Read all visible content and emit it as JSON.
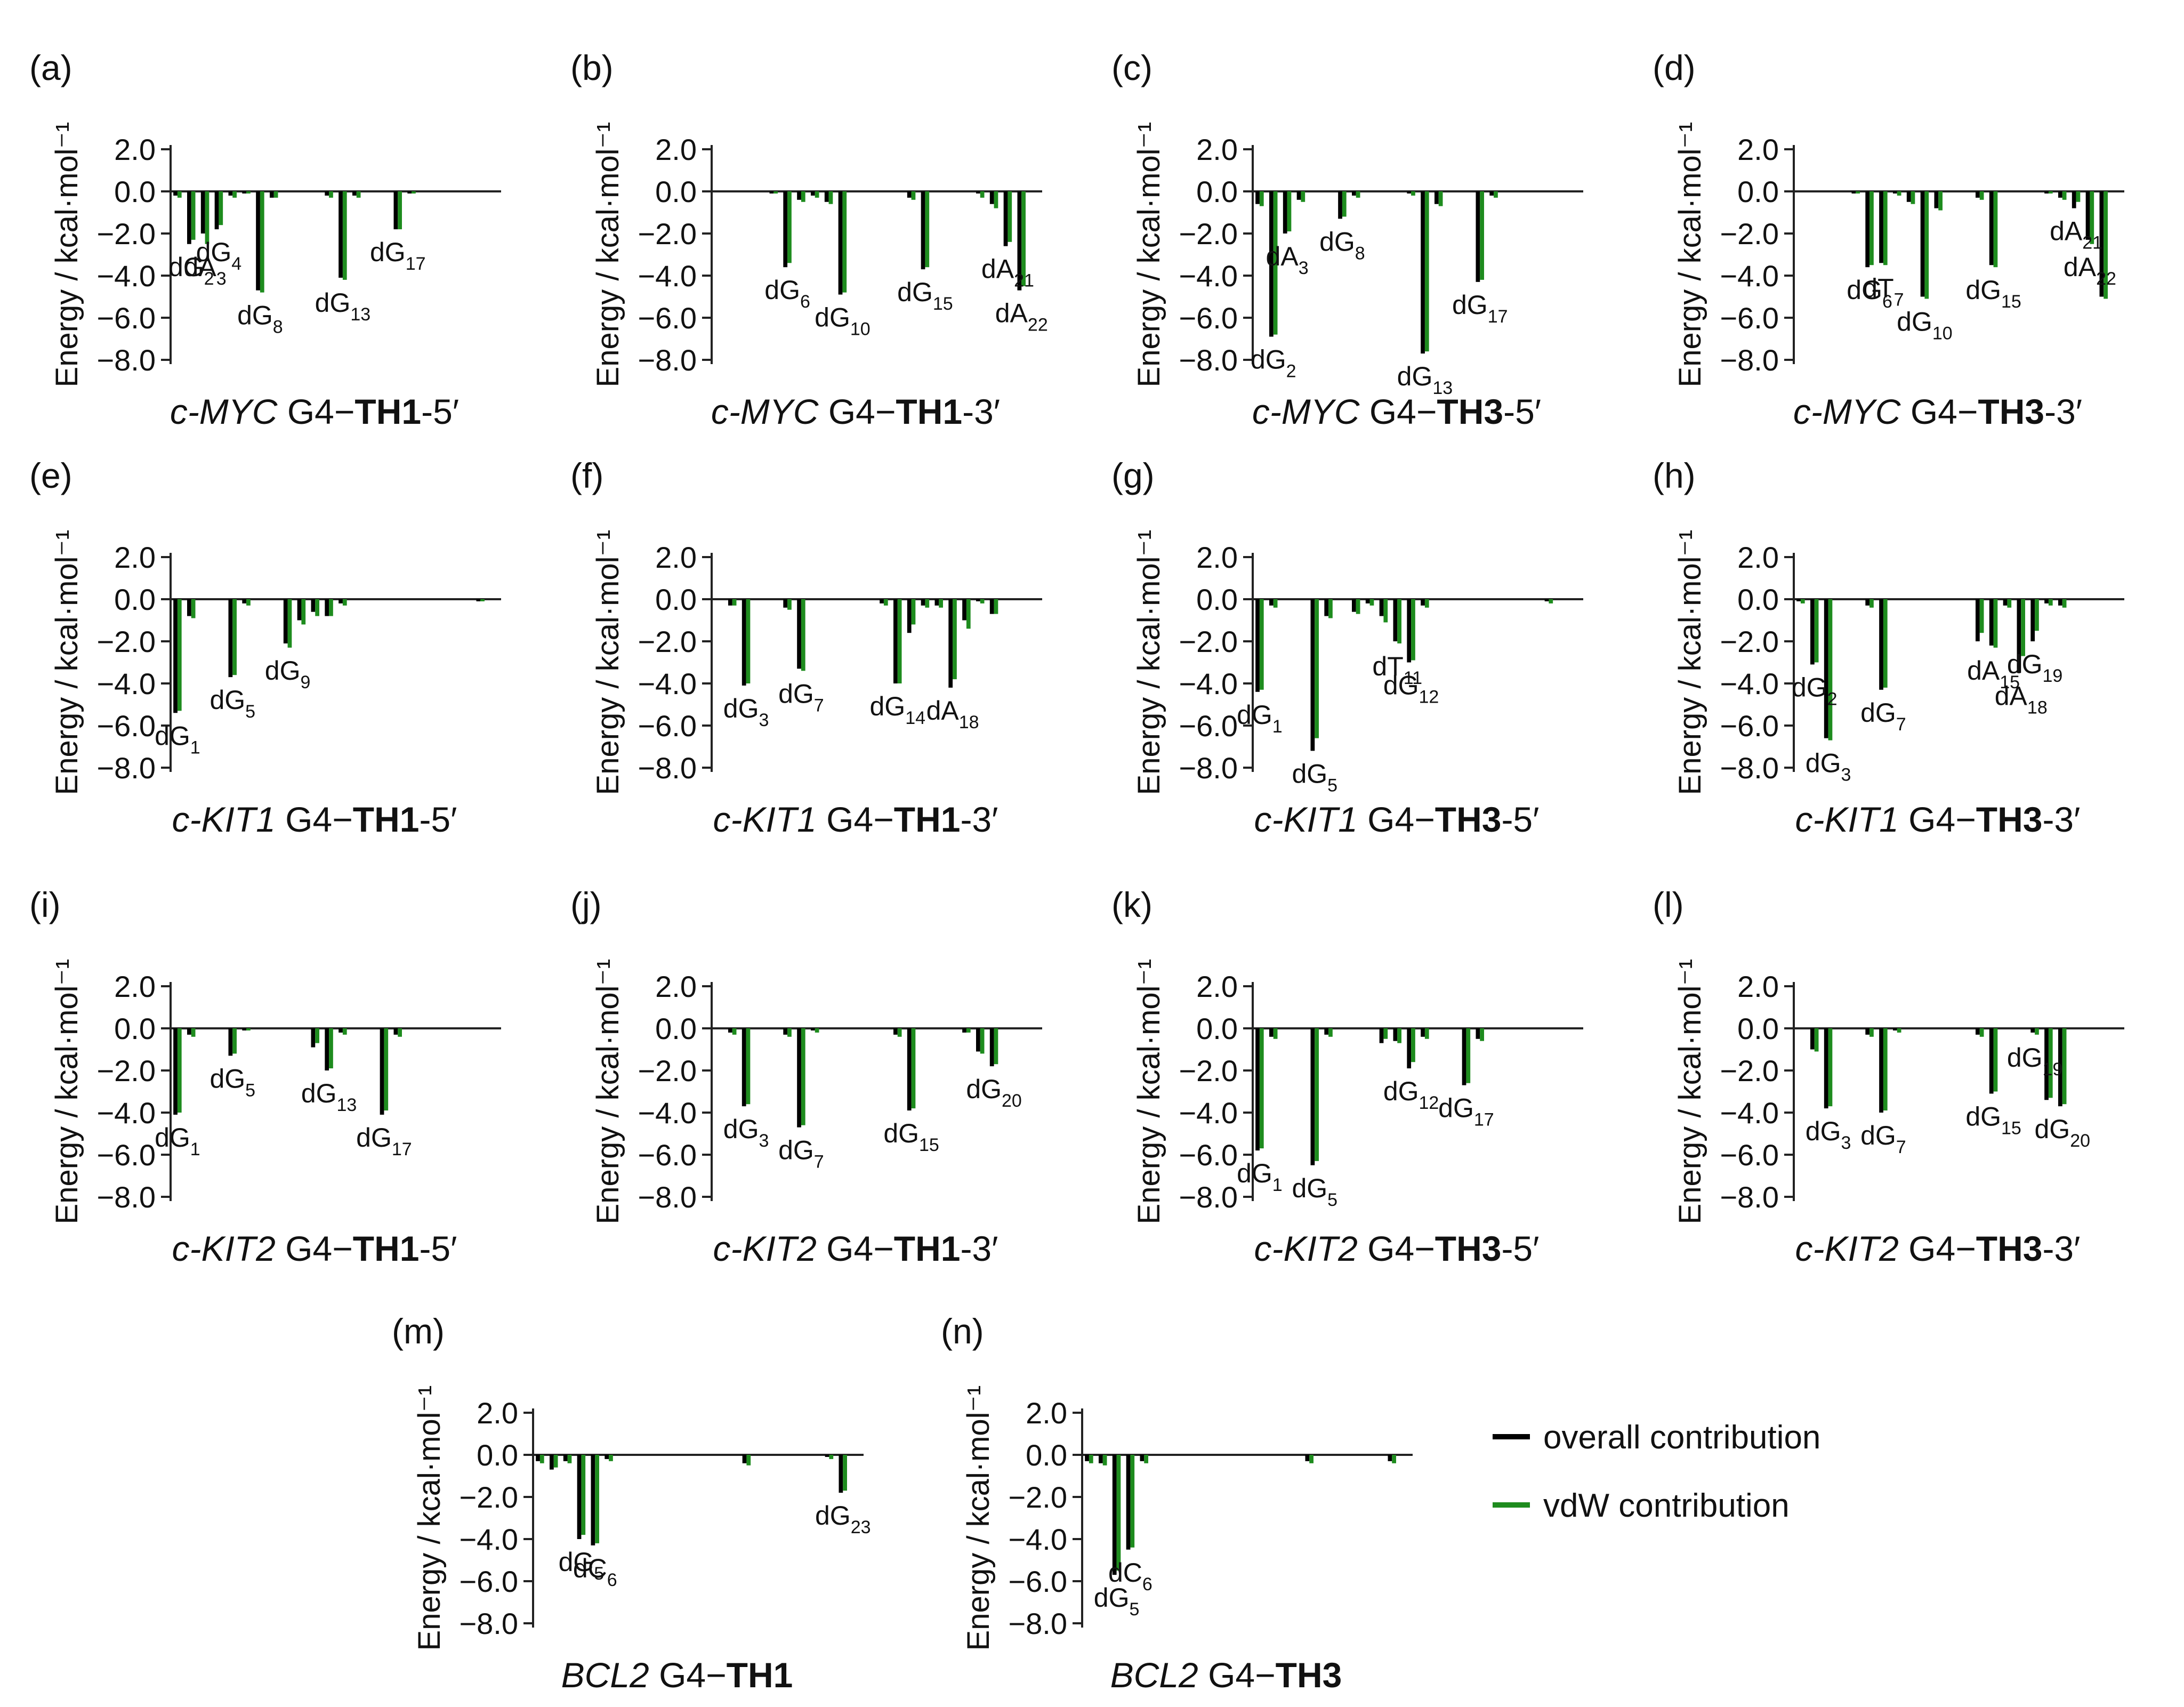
{
  "figure": {
    "axis_label": "Energy / kcal·mol⁻¹",
    "ticks": [
      "2.0",
      "0.0",
      "−2.0",
      "−4.0",
      "−6.0",
      "−8.0"
    ],
    "colors": {
      "overall": "#000000",
      "vdw": "#1e8c1e"
    },
    "legend": [
      {
        "key": "overall",
        "label": "overall contribution"
      },
      {
        "key": "vdw",
        "label": "vdW contribution"
      }
    ]
  },
  "chart_data": [
    {
      "id": "a",
      "letter": "(a)",
      "type": "bar",
      "gene": "c-MYC",
      "ligand": "TH1",
      "end": "-5′",
      "ylim": [
        -8,
        2
      ],
      "n": 24,
      "ylabel": "Energy / kcal·mol⁻¹",
      "overall": [
        -0.2,
        -2.5,
        -2.0,
        -1.8,
        -0.2,
        -0.1,
        -4.7,
        -0.3,
        0,
        0,
        0,
        -0.2,
        -4.1,
        -0.2,
        0,
        0,
        -1.8,
        -0.1,
        0,
        0,
        0,
        0,
        0,
        0
      ],
      "vdw": [
        -0.3,
        -2.3,
        -2.5,
        -1.6,
        -0.3,
        -0.1,
        -4.8,
        -0.3,
        0,
        0,
        0,
        -0.3,
        -4.2,
        -0.3,
        0,
        0,
        -1.8,
        -0.1,
        0,
        0,
        0,
        0,
        0,
        0
      ],
      "labels": [
        {
          "i": 1,
          "b": "dG",
          "s": "2"
        },
        {
          "i": 2,
          "b": "dA",
          "s": "3"
        },
        {
          "i": 3,
          "b": "dG",
          "s": "4"
        },
        {
          "i": 6,
          "b": "dG",
          "s": "8"
        },
        {
          "i": 12,
          "b": "dG",
          "s": "13"
        },
        {
          "i": 16,
          "b": "dG",
          "s": "17"
        }
      ]
    },
    {
      "id": "b",
      "letter": "(b)",
      "type": "bar",
      "gene": "c-MYC",
      "ligand": "TH1",
      "end": "-3′",
      "ylim": [
        -8,
        2
      ],
      "n": 24,
      "ylabel": "Energy / kcal·mol⁻¹",
      "overall": [
        0,
        0,
        0,
        0,
        -0.1,
        -3.6,
        -0.4,
        -0.2,
        -0.5,
        -4.9,
        0,
        0,
        0,
        0,
        -0.3,
        -3.7,
        0,
        0,
        0,
        -0.1,
        -0.6,
        -2.6,
        -4.7,
        0
      ],
      "vdw": [
        0,
        0,
        0,
        0,
        -0.1,
        -3.4,
        -0.5,
        -0.3,
        -0.6,
        -4.8,
        0,
        0,
        0,
        0,
        -0.4,
        -3.6,
        0,
        0,
        0,
        -0.3,
        -0.8,
        -2.4,
        -4.5,
        0
      ],
      "labels": [
        {
          "i": 5,
          "b": "dG",
          "s": "6"
        },
        {
          "i": 9,
          "b": "dG",
          "s": "10"
        },
        {
          "i": 15,
          "b": "dG",
          "s": "15"
        },
        {
          "i": 21,
          "b": "dA",
          "s": "21"
        },
        {
          "i": 22,
          "b": "dA",
          "s": "22"
        }
      ]
    },
    {
      "id": "c",
      "letter": "(c)",
      "type": "bar",
      "gene": "c-MYC",
      "ligand": "TH3",
      "end": "-5′",
      "ylim": [
        -8,
        2
      ],
      "n": 24,
      "ylabel": "Energy / kcal·mol⁻¹",
      "overall": [
        -0.6,
        -6.9,
        -2.0,
        -0.4,
        0,
        0,
        -1.3,
        -0.2,
        0,
        0,
        0,
        -0.1,
        -7.7,
        -0.6,
        0,
        0,
        -4.3,
        -0.2,
        0,
        0,
        0,
        0,
        0,
        0
      ],
      "vdw": [
        -0.7,
        -6.8,
        -1.9,
        -0.5,
        0,
        0,
        -1.2,
        -0.3,
        0,
        0,
        0,
        -0.2,
        -7.6,
        -0.7,
        0,
        0,
        -4.2,
        -0.3,
        0,
        0,
        0,
        0,
        0,
        0
      ],
      "labels": [
        {
          "i": 1,
          "b": "dG",
          "s": "2"
        },
        {
          "i": 2,
          "b": "dA",
          "s": "3"
        },
        {
          "i": 6,
          "b": "dG",
          "s": "8"
        },
        {
          "i": 12,
          "b": "dG",
          "s": "13"
        },
        {
          "i": 16,
          "b": "dG",
          "s": "17"
        }
      ]
    },
    {
      "id": "d",
      "letter": "(d)",
      "type": "bar",
      "gene": "c-MYC",
      "ligand": "TH3",
      "end": "-3′",
      "ylim": [
        -8,
        2
      ],
      "n": 24,
      "ylabel": "Energy / kcal·mol⁻¹",
      "overall": [
        0,
        0,
        0,
        0,
        -0.1,
        -3.6,
        -3.4,
        -0.1,
        -0.5,
        -5.0,
        -0.8,
        0,
        0,
        -0.3,
        -3.5,
        0,
        0,
        0,
        -0.1,
        -0.3,
        -0.8,
        -2.3,
        -5.0,
        0
      ],
      "vdw": [
        0,
        0,
        0,
        0,
        -0.1,
        -3.5,
        -3.5,
        -0.2,
        -0.6,
        -5.1,
        -0.9,
        0,
        0,
        -0.4,
        -3.6,
        0,
        0,
        0,
        -0.1,
        -0.4,
        -0.5,
        -2.5,
        -5.1,
        0
      ],
      "labels": [
        {
          "i": 5,
          "b": "dG",
          "s": "6"
        },
        {
          "i": 6,
          "b": "dT",
          "s": "7"
        },
        {
          "i": 9,
          "b": "dG",
          "s": "10"
        },
        {
          "i": 14,
          "b": "dG",
          "s": "15"
        },
        {
          "i": 20,
          "b": "dA",
          "s": "21"
        },
        {
          "i": 21,
          "b": "dA",
          "s": "22"
        }
      ]
    },
    {
      "id": "e",
      "letter": "(e)",
      "type": "bar",
      "gene": "c-KIT1",
      "ligand": "TH1",
      "end": "-5′",
      "ylim": [
        -8,
        2
      ],
      "n": 24,
      "ylabel": "Energy / kcal·mol⁻¹",
      "overall": [
        -5.4,
        -0.8,
        0,
        0,
        -3.7,
        -0.2,
        0,
        0,
        -2.1,
        -1.0,
        -0.6,
        -0.8,
        -0.2,
        0,
        0,
        0,
        0,
        0,
        0,
        0,
        0,
        0,
        -0.1,
        0
      ],
      "vdw": [
        -5.3,
        -0.9,
        0,
        0,
        -3.6,
        -0.3,
        0,
        0,
        -2.3,
        -1.2,
        -0.8,
        -0.8,
        -0.3,
        0,
        0,
        0,
        0,
        0,
        0,
        0,
        0,
        0,
        -0.1,
        0
      ],
      "labels": [
        {
          "i": 0,
          "b": "dG",
          "s": "1"
        },
        {
          "i": 4,
          "b": "dG",
          "s": "5"
        },
        {
          "i": 8,
          "b": "dG",
          "s": "9"
        }
      ]
    },
    {
      "id": "f",
      "letter": "(f)",
      "type": "bar",
      "gene": "c-KIT1",
      "ligand": "TH1",
      "end": "-3′",
      "ylim": [
        -8,
        2
      ],
      "n": 24,
      "ylabel": "Energy / kcal·mol⁻¹",
      "overall": [
        0,
        -0.3,
        -4.1,
        0,
        0,
        -0.4,
        -3.3,
        0,
        0,
        0,
        0,
        0,
        -0.2,
        -4.0,
        -1.6,
        -0.3,
        -0.3,
        -4.2,
        -1.0,
        -0.1,
        -0.7,
        0,
        0,
        0
      ],
      "vdw": [
        0,
        -0.3,
        -4.0,
        0,
        0,
        -0.5,
        -3.4,
        0,
        0,
        0,
        0,
        0,
        -0.3,
        -4.0,
        -1.2,
        -0.4,
        -0.4,
        -3.8,
        -1.4,
        -0.2,
        -0.7,
        0,
        0,
        0
      ],
      "labels": [
        {
          "i": 2,
          "b": "dG",
          "s": "3"
        },
        {
          "i": 6,
          "b": "dG",
          "s": "7"
        },
        {
          "i": 13,
          "b": "dG",
          "s": "14"
        },
        {
          "i": 17,
          "b": "dA",
          "s": "18"
        }
      ]
    },
    {
      "id": "g",
      "letter": "(g)",
      "type": "bar",
      "gene": "c-KIT1",
      "ligand": "TH3",
      "end": "-5′",
      "ylim": [
        -8,
        2
      ],
      "n": 24,
      "ylabel": "Energy / kcal·mol⁻¹",
      "overall": [
        -4.4,
        -0.3,
        0,
        0,
        -7.2,
        -0.8,
        0,
        -0.6,
        -0.2,
        -0.8,
        -2.0,
        -3.0,
        -0.3,
        0,
        0,
        0,
        0,
        0,
        0,
        0,
        0,
        -0.1,
        0,
        0
      ],
      "vdw": [
        -4.3,
        -0.4,
        0,
        0,
        -6.6,
        -0.9,
        0,
        -0.7,
        -0.3,
        -1.1,
        -2.1,
        -2.9,
        -0.4,
        0,
        0,
        0,
        0,
        0,
        0,
        0,
        0,
        -0.2,
        0,
        0
      ],
      "labels": [
        {
          "i": 0,
          "b": "dG",
          "s": "1"
        },
        {
          "i": 4,
          "b": "dG",
          "s": "5"
        },
        {
          "i": 10,
          "b": "dT",
          "s": "11"
        },
        {
          "i": 11,
          "b": "dG",
          "s": "12"
        }
      ]
    },
    {
      "id": "h",
      "letter": "(h)",
      "type": "bar",
      "gene": "c-KIT1",
      "ligand": "TH3",
      "end": "-3′",
      "ylim": [
        -8,
        2
      ],
      "n": 24,
      "ylabel": "Energy / kcal·mol⁻¹",
      "overall": [
        -0.1,
        -3.1,
        -6.6,
        0,
        0,
        -0.3,
        -4.3,
        0,
        0,
        0,
        0,
        0,
        0,
        -2.0,
        -2.2,
        -0.3,
        -3.5,
        -2.0,
        -0.2,
        -0.3,
        0,
        0,
        0,
        0
      ],
      "vdw": [
        -0.2,
        -3.0,
        -6.7,
        0,
        0,
        -0.4,
        -4.2,
        0,
        0,
        0,
        0,
        0,
        0,
        -1.6,
        -2.3,
        -0.4,
        -2.7,
        -1.5,
        -0.3,
        -0.4,
        0,
        0,
        0,
        0
      ],
      "labels": [
        {
          "i": 1,
          "b": "dG",
          "s": "2"
        },
        {
          "i": 2,
          "b": "dG",
          "s": "3"
        },
        {
          "i": 6,
          "b": "dG",
          "s": "7"
        },
        {
          "i": 14,
          "b": "dA",
          "s": "15"
        },
        {
          "i": 16,
          "b": "dA",
          "s": "18"
        },
        {
          "i": 17,
          "b": "dG",
          "s": "19"
        }
      ]
    },
    {
      "id": "i",
      "letter": "(i)",
      "type": "bar",
      "gene": "c-KIT2",
      "ligand": "TH1",
      "end": "-5′",
      "ylim": [
        -8,
        2
      ],
      "n": 24,
      "ylabel": "Energy / kcal·mol⁻¹",
      "overall": [
        -4.1,
        -0.3,
        0,
        0,
        -1.3,
        -0.1,
        0,
        0,
        0,
        0,
        -0.9,
        -2.0,
        -0.2,
        0,
        0,
        -4.1,
        -0.3,
        0,
        0,
        0,
        0,
        0,
        0,
        0
      ],
      "vdw": [
        -4.0,
        -0.4,
        0,
        0,
        -1.2,
        -0.1,
        0,
        0,
        0,
        0,
        -0.7,
        -1.9,
        -0.3,
        0,
        0,
        -3.9,
        -0.4,
        0,
        0,
        0,
        0,
        0,
        0,
        0
      ],
      "labels": [
        {
          "i": 0,
          "b": "dG",
          "s": "1"
        },
        {
          "i": 4,
          "b": "dG",
          "s": "5"
        },
        {
          "i": 11,
          "b": "dG",
          "s": "13"
        },
        {
          "i": 15,
          "b": "dG",
          "s": "17"
        }
      ]
    },
    {
      "id": "j",
      "letter": "(j)",
      "type": "bar",
      "gene": "c-KIT2",
      "ligand": "TH1",
      "end": "-3′",
      "ylim": [
        -8,
        2
      ],
      "n": 24,
      "ylabel": "Energy / kcal·mol⁻¹",
      "overall": [
        0,
        -0.2,
        -3.7,
        0,
        0,
        -0.3,
        -4.7,
        -0.1,
        0,
        0,
        0,
        0,
        0,
        -0.3,
        -3.9,
        0,
        0,
        0,
        -0.2,
        -1.1,
        -1.8,
        0,
        0,
        0
      ],
      "vdw": [
        0,
        -0.3,
        -3.6,
        0,
        0,
        -0.4,
        -4.6,
        -0.2,
        0,
        0,
        0,
        0,
        0,
        -0.4,
        -3.8,
        0,
        0,
        0,
        -0.2,
        -1.2,
        -1.7,
        0,
        0,
        0
      ],
      "labels": [
        {
          "i": 2,
          "b": "dG",
          "s": "3"
        },
        {
          "i": 6,
          "b": "dG",
          "s": "7"
        },
        {
          "i": 14,
          "b": "dG",
          "s": "15"
        },
        {
          "i": 20,
          "b": "dG",
          "s": "20"
        }
      ]
    },
    {
      "id": "k",
      "letter": "(k)",
      "type": "bar",
      "gene": "c-KIT2",
      "ligand": "TH3",
      "end": "-5′",
      "ylim": [
        -8,
        2
      ],
      "n": 24,
      "ylabel": "Energy / kcal·mol⁻¹",
      "overall": [
        -5.8,
        -0.4,
        0,
        0,
        -6.5,
        -0.3,
        0,
        0,
        0,
        -0.7,
        -0.6,
        -1.9,
        -0.4,
        0,
        0,
        -2.7,
        -0.5,
        0,
        0,
        0,
        0,
        0,
        0,
        0
      ],
      "vdw": [
        -5.7,
        -0.5,
        0,
        0,
        -6.3,
        -0.4,
        0,
        0,
        0,
        -0.5,
        -0.7,
        -1.6,
        -0.5,
        0,
        0,
        -2.6,
        -0.6,
        0,
        0,
        0,
        0,
        0,
        0,
        0
      ],
      "labels": [
        {
          "i": 0,
          "b": "dG",
          "s": "1"
        },
        {
          "i": 4,
          "b": "dG",
          "s": "5"
        },
        {
          "i": 11,
          "b": "dG",
          "s": "12"
        },
        {
          "i": 15,
          "b": "dG",
          "s": "17"
        }
      ]
    },
    {
      "id": "l",
      "letter": "(l)",
      "type": "bar",
      "gene": "c-KIT2",
      "ligand": "TH3",
      "end": "-3′",
      "ylim": [
        -8,
        2
      ],
      "n": 24,
      "ylabel": "Energy / kcal·mol⁻¹",
      "overall": [
        0,
        -1.0,
        -3.8,
        0,
        0,
        -0.3,
        -4.0,
        -0.1,
        0,
        0,
        0,
        0,
        0,
        -0.3,
        -3.1,
        0,
        0,
        -0.2,
        -3.4,
        -3.7,
        0,
        0,
        0,
        0
      ],
      "vdw": [
        0,
        -1.1,
        -3.7,
        0,
        0,
        -0.4,
        -3.9,
        -0.2,
        0,
        0,
        0,
        0,
        0,
        -0.4,
        -3.0,
        0,
        0,
        -0.3,
        -3.3,
        -3.6,
        0,
        0,
        0,
        0
      ],
      "labels": [
        {
          "i": 2,
          "b": "dG",
          "s": "3"
        },
        {
          "i": 6,
          "b": "dG",
          "s": "7"
        },
        {
          "i": 14,
          "b": "dG",
          "s": "15"
        },
        {
          "i": 17,
          "b": "dG",
          "s": "19"
        },
        {
          "i": 19,
          "b": "dG",
          "s": "20"
        }
      ]
    },
    {
      "id": "m",
      "letter": "(m)",
      "type": "bar",
      "gene": "BCL2",
      "ligand": "TH1",
      "end": "",
      "ylim": [
        -8,
        2
      ],
      "n": 24,
      "ylabel": "Energy / kcal·mol⁻¹",
      "overall": [
        -0.3,
        -0.7,
        -0.3,
        -4.0,
        -4.3,
        -0.2,
        0,
        0,
        0,
        0,
        0,
        0,
        0,
        0,
        0,
        -0.4,
        0,
        0,
        0,
        0,
        0,
        -0.1,
        -1.8,
        0
      ],
      "vdw": [
        -0.4,
        -0.6,
        -0.4,
        -3.8,
        -4.2,
        -0.3,
        0,
        0,
        0,
        0,
        0,
        0,
        0,
        0,
        0,
        -0.5,
        0,
        0,
        0,
        0,
        0,
        -0.2,
        -1.7,
        0
      ],
      "labels": [
        {
          "i": 3,
          "b": "dG",
          "s": "5"
        },
        {
          "i": 4,
          "b": "dC",
          "s": "6"
        },
        {
          "i": 22,
          "b": "dG",
          "s": "23"
        }
      ]
    },
    {
      "id": "n",
      "letter": "(n)",
      "type": "bar",
      "gene": "BCL2",
      "ligand": "TH3",
      "end": "",
      "ylim": [
        -8,
        2
      ],
      "n": 24,
      "ylabel": "Energy / kcal·mol⁻¹",
      "overall": [
        -0.3,
        -0.4,
        -5.7,
        -4.5,
        -0.3,
        0,
        0,
        0,
        0,
        0,
        0,
        0,
        0,
        0,
        0,
        0,
        -0.3,
        0,
        0,
        0,
        0,
        0,
        -0.3,
        0
      ],
      "vdw": [
        -0.4,
        -0.5,
        -5.5,
        -4.4,
        -0.4,
        0,
        0,
        0,
        0,
        0,
        0,
        0,
        0,
        0,
        0,
        0,
        -0.4,
        0,
        0,
        0,
        0,
        0,
        -0.4,
        0
      ],
      "labels": [
        {
          "i": 2,
          "b": "dG",
          "s": "5"
        },
        {
          "i": 3,
          "b": "dC",
          "s": "6"
        }
      ]
    }
  ]
}
